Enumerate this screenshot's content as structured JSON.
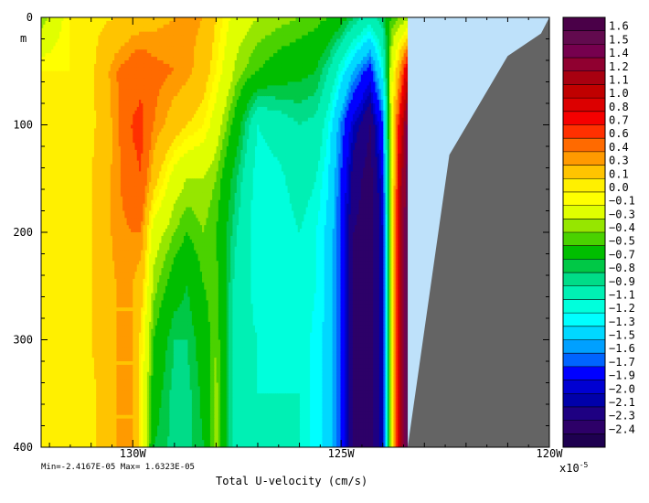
{
  "chart_data": {
    "type": "heatmap",
    "title": "Total U-velocity (cm/s)",
    "stats": "Min=-2.4167E-05  Max= 1.6323E-05",
    "colorbar_scale": "x10",
    "colorbar_exponent": "-5",
    "y_unit": "m",
    "xlim": [
      -132.2,
      -120
    ],
    "ylim": [
      400,
      0
    ],
    "x_ticks": [
      {
        "value": -130,
        "label": "130W"
      },
      {
        "value": -125,
        "label": "125W"
      },
      {
        "value": -120,
        "label": "120W"
      }
    ],
    "y_ticks": [
      {
        "value": 0,
        "label": "0"
      },
      {
        "value": 100,
        "label": "100"
      },
      {
        "value": 200,
        "label": "200"
      },
      {
        "value": 300,
        "label": "300"
      },
      {
        "value": 400,
        "label": "400"
      }
    ],
    "levels": [
      "1.6",
      "1.5",
      "1.4",
      "1.2",
      "1.1",
      "1.0",
      "0.8",
      "0.7",
      "0.6",
      "0.4",
      "0.3",
      "0.1",
      "0.0",
      "−0.1",
      "−0.3",
      "−0.4",
      "−0.5",
      "−0.7",
      "−0.8",
      "−0.9",
      "−1.1",
      "−1.2",
      "−1.3",
      "−1.5",
      "−1.6",
      "−1.7",
      "−1.9",
      "−2.0",
      "−2.1",
      "−2.3",
      "−2.4"
    ],
    "colors": [
      "#4a0048",
      "#620a4e",
      "#76004e",
      "#900030",
      "#a80010",
      "#c00000",
      "#dc0000",
      "#f50000",
      "#ff3000",
      "#ff6a00",
      "#ff9a00",
      "#ffc400",
      "#fff000",
      "#ffff00",
      "#e0ff00",
      "#96e600",
      "#4ad200",
      "#00be00",
      "#00c846",
      "#00dc88",
      "#00f0b4",
      "#00ffdc",
      "#00ffff",
      "#00d8ff",
      "#00a0ff",
      "#0064ff",
      "#0000ff",
      "#0000d2",
      "#0000aa",
      "#1e0082",
      "#2d0068",
      "#1e0050"
    ],
    "land_color": "#646464",
    "water_color": "#bee1fa",
    "profiles": [
      {
        "lon": -132.2,
        "values": [
          -0.4,
          0.0,
          0.0,
          0.0,
          0.0,
          0.0,
          0.0,
          0.0,
          0.0
        ]
      },
      {
        "lon": -131.5,
        "values": [
          0.0,
          0.0,
          0.0,
          0.0,
          0.0,
          0.0,
          0.0,
          0.0,
          0.0
        ]
      },
      {
        "lon": -131.0,
        "values": [
          0.05,
          0.05,
          0.05,
          0.1,
          0.1,
          0.1,
          0.1,
          0.05,
          0.05
        ]
      },
      {
        "lon": -130.4,
        "values": [
          0.1,
          0.4,
          0.35,
          0.35,
          0.35,
          0.3,
          0.3,
          0.3,
          0.3
        ]
      },
      {
        "lon": -130.0,
        "values": [
          0.2,
          0.5,
          0.62,
          0.55,
          0.4,
          0.3,
          0.3,
          0.3,
          0.3
        ]
      },
      {
        "lon": -129.8,
        "values": [
          0.2,
          0.55,
          0.65,
          0.6,
          0.4,
          0.2,
          0.05,
          0.0,
          0.0
        ]
      },
      {
        "lon": -129.5,
        "values": [
          0.25,
          0.45,
          0.4,
          0.2,
          -0.2,
          -0.35,
          -0.5,
          -0.6,
          -0.7
        ]
      },
      {
        "lon": -129.0,
        "values": [
          0.3,
          0.4,
          0.2,
          -0.2,
          -0.4,
          -0.6,
          -0.8,
          -0.85,
          -0.85
        ]
      },
      {
        "lon": -128.7,
        "values": [
          0.35,
          0.35,
          0.1,
          -0.3,
          -0.5,
          -0.7,
          -0.8,
          -0.85,
          -0.85
        ]
      },
      {
        "lon": -128.3,
        "values": [
          0.3,
          0.2,
          0.0,
          -0.3,
          -0.4,
          -0.5,
          -0.6,
          -0.65,
          -0.7
        ]
      },
      {
        "lon": -128.0,
        "values": [
          0.1,
          0.0,
          -0.2,
          -0.4,
          -0.5,
          -0.45,
          -0.4,
          -0.35,
          -0.35
        ]
      },
      {
        "lon": -127.5,
        "values": [
          -0.2,
          -0.35,
          -0.6,
          -0.8,
          -0.9,
          -1.0,
          -1.05,
          -1.05,
          -1.05
        ]
      },
      {
        "lon": -127.0,
        "values": [
          -0.3,
          -0.5,
          -1.1,
          -1.2,
          -1.2,
          -1.15,
          -1.1,
          -1.1,
          -1.1
        ]
      },
      {
        "lon": -126.5,
        "values": [
          -0.35,
          -0.6,
          -1.0,
          -1.15,
          -1.2,
          -1.15,
          -1.15,
          -1.1,
          -1.1
        ]
      },
      {
        "lon": -126.0,
        "values": [
          -0.4,
          -0.65,
          -0.9,
          -1.0,
          -1.1,
          -1.1,
          -1.1,
          -1.1,
          -1.1
        ]
      },
      {
        "lon": -125.6,
        "values": [
          -0.45,
          -0.7,
          -0.95,
          -1.1,
          -1.2,
          -1.2,
          -1.25,
          -1.25,
          -1.25
        ]
      },
      {
        "lon": -125.3,
        "values": [
          -0.5,
          -0.9,
          -1.2,
          -1.3,
          -1.35,
          -1.35,
          -1.35,
          -1.35,
          -1.35
        ]
      },
      {
        "lon": -125.0,
        "values": [
          -0.6,
          -1.2,
          -1.6,
          -1.7,
          -1.75,
          -1.75,
          -1.75,
          -1.75,
          -1.75
        ]
      },
      {
        "lon": -124.7,
        "values": [
          -0.8,
          -1.5,
          -2.0,
          -2.2,
          -2.3,
          -2.3,
          -2.3,
          -2.3,
          -2.3
        ]
      },
      {
        "lon": -124.3,
        "values": [
          -1.0,
          -1.8,
          -2.3,
          -2.4,
          -2.4,
          -2.4,
          -2.4,
          -2.4,
          -2.4
        ]
      },
      {
        "lon": -124.0,
        "values": [
          -0.8,
          -1.2,
          -1.7,
          -1.9,
          -2.0,
          -2.0,
          -2.0,
          -2.0,
          -2.0
        ]
      },
      {
        "lon": -123.8,
        "values": [
          -0.5,
          -0.2,
          -0.2,
          -0.2,
          -0.2,
          -0.2,
          -0.2,
          -0.2,
          -0.2
        ]
      },
      {
        "lon": -123.6,
        "values": [
          -0.4,
          0.3,
          0.8,
          1.0,
          1.1,
          1.1,
          1.1,
          1.1,
          1.1
        ]
      },
      {
        "lon": -123.4,
        "values": [
          -0.4,
          1.0,
          1.5,
          1.6,
          1.6,
          1.6,
          1.6,
          1.6,
          1.6
        ]
      }
    ],
    "depths": [
      0,
      50,
      100,
      150,
      200,
      250,
      300,
      350,
      400
    ],
    "topography": [
      {
        "lon": -123.4,
        "depth": 400
      },
      {
        "lon": -122.4,
        "depth": 128
      },
      {
        "lon": -121.0,
        "depth": 36
      },
      {
        "lon": -120.2,
        "depth": 15
      },
      {
        "lon": -120.0,
        "depth": 0
      }
    ],
    "shelf_water_edge": -123.4
  }
}
